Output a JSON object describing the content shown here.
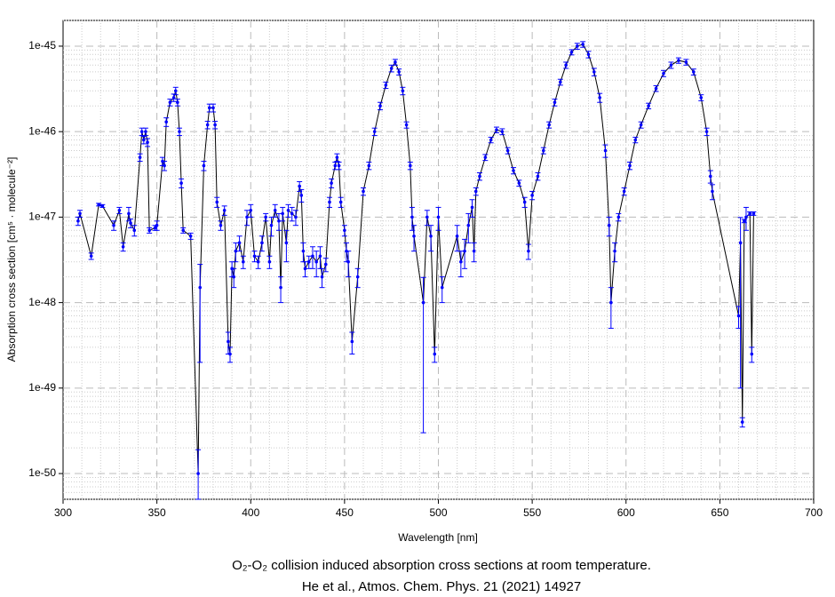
{
  "chart_data": {
    "type": "scatter",
    "title": "O₂-O₂ collision induced absorption cross sections at room temperature.",
    "subtitle": "He et al., Atmos. Chem. Phys. 21 (2021) 14927",
    "x_label": "Wavelength [nm]",
    "y_label": "Absorption cross section [cm⁵ · molecule⁻²]",
    "xlim": [
      300,
      700
    ],
    "xticks": [
      300,
      350,
      400,
      450,
      500,
      550,
      600,
      650,
      700
    ],
    "ylim": [
      5e-51,
      2e-45
    ],
    "yticks": [
      {
        "value": 1e-50,
        "label": "1e-50"
      },
      {
        "value": 1e-49,
        "label": "1e-49"
      },
      {
        "value": 1e-48,
        "label": "1e-48"
      },
      {
        "value": 1e-47,
        "label": "1e-47"
      },
      {
        "value": 1e-46,
        "label": "1e-46"
      },
      {
        "value": 1e-45,
        "label": "1e-45"
      }
    ],
    "log_y": true,
    "grid": true,
    "minor_grid": true,
    "color": "#0000ff",
    "line_color": "#000000",
    "x": [
      308,
      309,
      315,
      319,
      321,
      327,
      330,
      332,
      335,
      336,
      338,
      341,
      342,
      343,
      344,
      345,
      346,
      349,
      350,
      353,
      354,
      355,
      357,
      359,
      360,
      361,
      362,
      363,
      364,
      368,
      372,
      373,
      375,
      377,
      378,
      380,
      381,
      382,
      384,
      386,
      388,
      389,
      390,
      391,
      392,
      394,
      396,
      398,
      400,
      402,
      404,
      406,
      408,
      410,
      411,
      413,
      415,
      416,
      417,
      419,
      420,
      422,
      424,
      426,
      427,
      428,
      429,
      431,
      433,
      435,
      437,
      438,
      440,
      442,
      443,
      445,
      446,
      447,
      448,
      450,
      451,
      452,
      454,
      457,
      460,
      463,
      466,
      469,
      472,
      475,
      477,
      479,
      481,
      483,
      485,
      486,
      487,
      492,
      494,
      496,
      498,
      500,
      502,
      510,
      512,
      514,
      516,
      518,
      519,
      520,
      522,
      525,
      528,
      531,
      534,
      537,
      540,
      543,
      546,
      548,
      550,
      553,
      556,
      559,
      562,
      565,
      568,
      571,
      574,
      577,
      580,
      583,
      586,
      589,
      591,
      592,
      594,
      596,
      599,
      602,
      605,
      608,
      612,
      616,
      620,
      624,
      628,
      632,
      636,
      640,
      643,
      645,
      646,
      660,
      661,
      662,
      663,
      664,
      666,
      667,
      668
    ],
    "values": [
      9e-48,
      1.1e-47,
      3.5e-48,
      1.4e-47,
      1.35e-47,
      8e-48,
      1.2e-47,
      4.5e-48,
      1.1e-47,
      8.5e-48,
      7e-48,
      5e-47,
      1e-46,
      8e-47,
      1e-46,
      7.5e-47,
      7e-48,
      7.5e-48,
      8e-48,
      4.5e-47,
      4e-47,
      1.3e-46,
      2.2e-46,
      2.5e-46,
      3e-46,
      2.2e-46,
      1e-46,
      2.5e-47,
      7e-48,
      6e-48,
      1e-50,
      1.5e-48,
      4e-47,
      1.2e-46,
      1.9e-46,
      1.9e-46,
      1.2e-46,
      1.5e-47,
      8e-48,
      1.2e-47,
      3.5e-49,
      2.5e-49,
      2.5e-48,
      2e-48,
      4e-48,
      5e-48,
      3e-48,
      1e-47,
      1.2e-47,
      3.5e-48,
      3e-48,
      5e-48,
      1e-47,
      3e-48,
      8e-48,
      1.2e-47,
      9e-48,
      1.5e-48,
      1.1e-47,
      5e-48,
      1.2e-47,
      1.1e-47,
      1e-47,
      2.3e-47,
      1.8e-47,
      4e-48,
      2.5e-48,
      3e-48,
      3.5e-48,
      3e-48,
      3.5e-48,
      2e-48,
      2.8e-48,
      1.5e-47,
      2.5e-47,
      4e-47,
      5e-47,
      4e-47,
      1.5e-47,
      7e-48,
      4e-48,
      3e-48,
      3.5e-49,
      2e-48,
      2e-47,
      4e-47,
      1e-46,
      2e-46,
      3.5e-46,
      5.5e-46,
      6.5e-46,
      5e-46,
      3e-46,
      1.2e-46,
      4e-47,
      1e-47,
      6e-48,
      1e-48,
      1e-47,
      6e-48,
      2.5e-49,
      1e-47,
      1.5e-48,
      6e-48,
      3e-48,
      4e-48,
      8e-48,
      1.3e-47,
      4e-48,
      2e-47,
      3e-47,
      5e-47,
      8e-47,
      1.05e-46,
      1e-46,
      6e-47,
      3.5e-47,
      2.5e-47,
      1.5e-47,
      4e-48,
      1.8e-47,
      3e-47,
      6e-47,
      1.2e-46,
      2.2e-46,
      3.8e-46,
      6e-46,
      8.5e-46,
      1e-45,
      1.05e-45,
      8e-46,
      5e-46,
      2.5e-46,
      6e-47,
      8e-48,
      1e-48,
      4e-48,
      1e-47,
      2e-47,
      4e-47,
      8e-47,
      1.2e-46,
      2e-46,
      3.2e-46,
      4.8e-46,
      6e-46,
      6.8e-46,
      6.5e-46,
      5e-46,
      2.5e-46,
      1e-46,
      3e-47,
      2e-47,
      7e-49,
      5e-48,
      4e-50,
      9e-48,
      1e-47,
      1.1e-47,
      2.5e-49,
      1.1e-47
    ],
    "errors": [
      1e-48,
      1e-48,
      3e-49,
      5e-49,
      5e-49,
      1e-48,
      1e-48,
      5e-49,
      2e-48,
      1e-48,
      1e-48,
      5e-48,
      1e-47,
      8e-48,
      1e-47,
      8e-48,
      5e-49,
      5e-49,
      1e-48,
      5e-48,
      5e-48,
      1.5e-47,
      2e-47,
      2.5e-47,
      3e-47,
      2e-47,
      1e-47,
      3e-48,
      5e-49,
      5e-49,
      9e-51,
      1.3e-48,
      5e-48,
      1.2e-47,
      2e-47,
      2e-47,
      1.2e-47,
      2e-48,
      1e-48,
      1.5e-48,
      1e-49,
      5e-50,
      5e-49,
      5e-49,
      1e-48,
      1e-48,
      5e-49,
      2e-48,
      2e-48,
      5e-49,
      5e-49,
      1e-48,
      1e-48,
      5e-49,
      2e-48,
      2e-48,
      2e-48,
      5e-49,
      2e-48,
      2e-48,
      2e-48,
      2e-48,
      2e-48,
      3e-48,
      3e-48,
      1e-48,
      5e-49,
      5e-49,
      1e-48,
      1e-48,
      1e-48,
      5e-49,
      5e-49,
      2e-48,
      3e-48,
      4e-48,
      5e-48,
      4e-48,
      2e-48,
      1e-48,
      1e-48,
      1e-48,
      1e-49,
      5e-49,
      2e-48,
      4e-48,
      1e-47,
      2e-47,
      3e-47,
      5e-47,
      5e-47,
      4e-47,
      3e-47,
      1e-47,
      4e-48,
      3e-48,
      2e-48,
      9.7e-49,
      2e-48,
      2e-48,
      5e-50,
      3e-48,
      5e-49,
      2e-48,
      1e-48,
      1.5e-48,
      3e-48,
      3e-48,
      1e-48,
      2e-48,
      3e-48,
      4e-48,
      6e-48,
      8e-48,
      8e-48,
      5e-48,
      3e-48,
      2e-48,
      2e-48,
      8e-49,
      2e-48,
      3e-48,
      5e-48,
      1e-47,
      2e-47,
      3e-47,
      5e-47,
      6e-47,
      8e-47,
      8e-47,
      7e-47,
      5e-47,
      3e-47,
      1e-47,
      2e-48,
      5e-49,
      1e-48,
      1e-48,
      2e-48,
      4e-48,
      6e-48,
      1e-47,
      1.5e-47,
      2.5e-47,
      4e-47,
      5e-47,
      5e-47,
      5e-47,
      4e-47,
      2e-47,
      1e-47,
      5e-48,
      4e-48,
      2e-49,
      4.9e-48,
      5e-51,
      4e-49,
      3e-48,
      5e-49,
      5e-50,
      5e-49
    ]
  }
}
